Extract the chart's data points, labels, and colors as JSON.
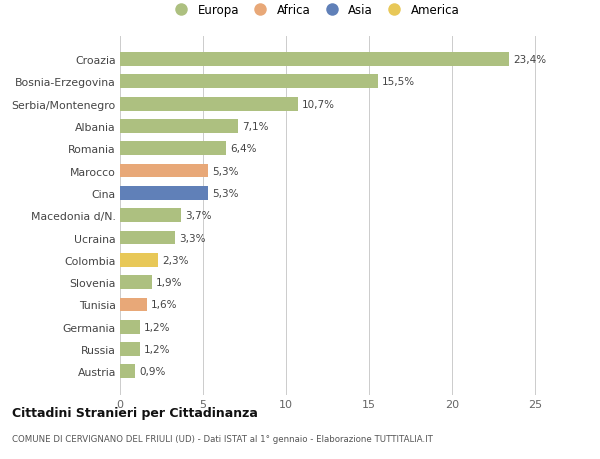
{
  "categories": [
    "Croazia",
    "Bosnia-Erzegovina",
    "Serbia/Montenegro",
    "Albania",
    "Romania",
    "Marocco",
    "Cina",
    "Macedonia d/N.",
    "Ucraina",
    "Colombia",
    "Slovenia",
    "Tunisia",
    "Germania",
    "Russia",
    "Austria"
  ],
  "values": [
    23.4,
    15.5,
    10.7,
    7.1,
    6.4,
    5.3,
    5.3,
    3.7,
    3.3,
    2.3,
    1.9,
    1.6,
    1.2,
    1.2,
    0.9
  ],
  "labels": [
    "23,4%",
    "15,5%",
    "10,7%",
    "7,1%",
    "6,4%",
    "5,3%",
    "5,3%",
    "3,7%",
    "3,3%",
    "2,3%",
    "1,9%",
    "1,6%",
    "1,2%",
    "1,2%",
    "0,9%"
  ],
  "colors": [
    "#adc080",
    "#adc080",
    "#adc080",
    "#adc080",
    "#adc080",
    "#e8a878",
    "#6080b8",
    "#adc080",
    "#adc080",
    "#e8c858",
    "#adc080",
    "#e8a878",
    "#adc080",
    "#adc080",
    "#adc080"
  ],
  "legend": [
    {
      "label": "Europa",
      "color": "#adc080"
    },
    {
      "label": "Africa",
      "color": "#e8a878"
    },
    {
      "label": "Asia",
      "color": "#6080b8"
    },
    {
      "label": "America",
      "color": "#e8c858"
    }
  ],
  "title": "Cittadini Stranieri per Cittadinanza",
  "subtitle": "COMUNE DI CERVIGNANO DEL FRIULI (UD) - Dati ISTAT al 1° gennaio - Elaborazione TUTTITALIA.IT",
  "xlim": [
    0,
    26
  ],
  "xticks": [
    0,
    5,
    10,
    15,
    20,
    25
  ],
  "background_color": "#ffffff",
  "grid_color": "#cccccc"
}
